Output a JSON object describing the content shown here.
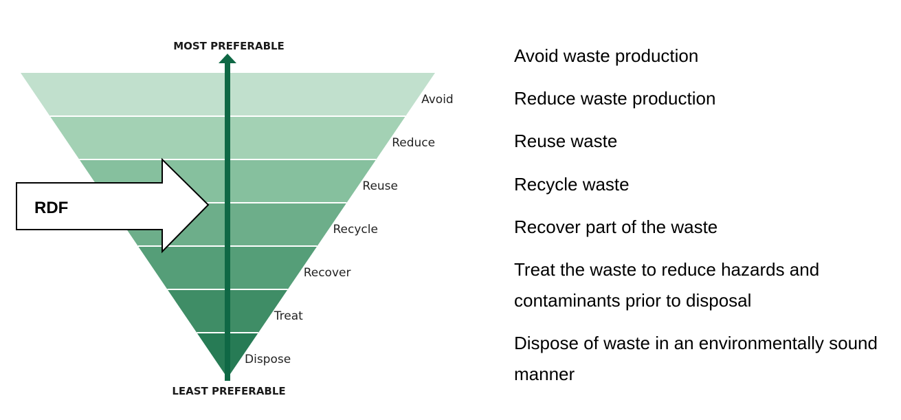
{
  "axis": {
    "top_label": "MOST PREFERABLE",
    "bottom_label": "LEAST PREFERABLE"
  },
  "callout": {
    "label": "RDF"
  },
  "hierarchy": {
    "levels": [
      {
        "label": "Avoid",
        "color": "#c1e0cd",
        "description": "Avoid waste production"
      },
      {
        "label": "Reduce",
        "color": "#a3d1b4",
        "description": "Reduce waste production"
      },
      {
        "label": "Reuse",
        "color": "#86c09e",
        "description": "Reuse waste"
      },
      {
        "label": "Recycle",
        "color": "#6dae8a",
        "description": "Recycle waste"
      },
      {
        "label": "Recover",
        "color": "#559e78",
        "description": "Recover part of the waste"
      },
      {
        "label": "Treat",
        "color": "#3f8d66",
        "description": "Treat the waste to reduce hazards and contaminants prior to disposal"
      },
      {
        "label": "Dispose",
        "color": "#277b55",
        "description": "Dispose of waste in an environmentally sound manner"
      }
    ]
  },
  "colors": {
    "arrow": "#0f6845",
    "separator": "#ffffff"
  }
}
